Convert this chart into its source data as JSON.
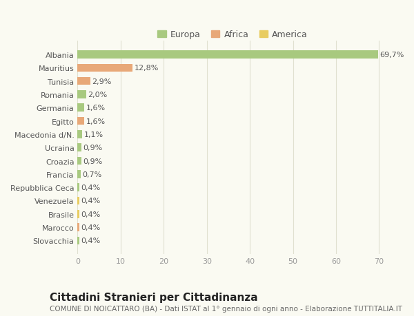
{
  "categories": [
    "Albania",
    "Mauritius",
    "Tunisia",
    "Romania",
    "Germania",
    "Egitto",
    "Macedonia d/N.",
    "Ucraina",
    "Croazia",
    "Francia",
    "Repubblica Ceca",
    "Venezuela",
    "Brasile",
    "Marocco",
    "Slovacchia"
  ],
  "values": [
    69.7,
    12.8,
    2.9,
    2.0,
    1.6,
    1.6,
    1.1,
    0.9,
    0.9,
    0.7,
    0.4,
    0.4,
    0.4,
    0.4,
    0.4
  ],
  "labels": [
    "69,7%",
    "12,8%",
    "2,9%",
    "2,0%",
    "1,6%",
    "1,6%",
    "1,1%",
    "0,9%",
    "0,9%",
    "0,7%",
    "0,4%",
    "0,4%",
    "0,4%",
    "0,4%",
    "0,4%"
  ],
  "colors": [
    "#a8c97f",
    "#e8a878",
    "#e8a878",
    "#a8c97f",
    "#a8c97f",
    "#e8a878",
    "#a8c97f",
    "#a8c97f",
    "#a8c97f",
    "#a8c97f",
    "#a8c97f",
    "#e8cc60",
    "#e8cc60",
    "#e8a878",
    "#a8c97f"
  ],
  "legend_labels": [
    "Europa",
    "Africa",
    "America"
  ],
  "legend_colors": [
    "#a8c97f",
    "#e8a878",
    "#e8cc60"
  ],
  "title": "Cittadini Stranieri per Cittadinanza",
  "subtitle": "COMUNE DI NOICATTARO (BA) - Dati ISTAT al 1° gennaio di ogni anno - Elaborazione TUTTITALIA.IT",
  "xlim": [
    0,
    72
  ],
  "xticks": [
    0,
    10,
    20,
    30,
    40,
    50,
    60,
    70
  ],
  "background_color": "#fafaf2",
  "grid_color": "#e0e0d0",
  "bar_height": 0.6,
  "title_fontsize": 11,
  "subtitle_fontsize": 7.5,
  "tick_fontsize": 8,
  "label_fontsize": 8,
  "legend_fontsize": 9
}
